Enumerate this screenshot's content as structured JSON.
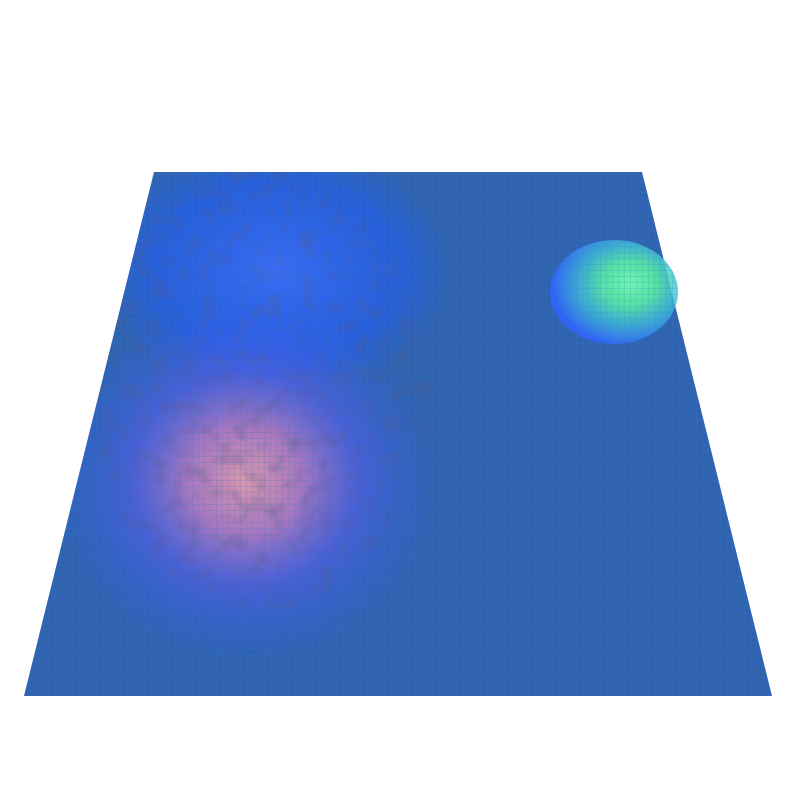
{
  "scene": {
    "type": "3d-surface-mesh",
    "background_color": "#ffffff",
    "base_surface_color": "#2f63b0",
    "mesh_line_color": "#3a78c8",
    "features": [
      {
        "name": "large-bump",
        "colors": [
          "#2a5cff",
          "#5a5cf0",
          "#c07ac0",
          "#d88a9a"
        ],
        "peak_color": "#e59aa8"
      },
      {
        "name": "blue-upper-region",
        "colors": [
          "#1f5bff",
          "#3a6dff"
        ]
      },
      {
        "name": "small-bump",
        "colors": [
          "#2f63ff",
          "#3fc0d8",
          "#58f0a0"
        ],
        "peak_color": "#6ff5b0"
      }
    ]
  }
}
